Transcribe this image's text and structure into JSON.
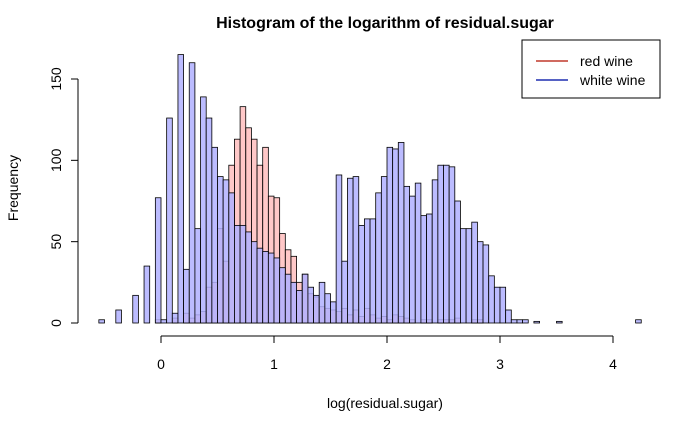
{
  "chart_data": {
    "type": "histogram",
    "title": "Histogram of the logarithm of residual.sugar",
    "xlabel": "log(residual.sugar)",
    "ylabel": "Frequency",
    "xlim": [
      -0.55,
      4.25
    ],
    "ylim": [
      0,
      170
    ],
    "x_ticks": [
      0,
      1,
      2,
      3,
      4
    ],
    "y_ticks": [
      0,
      50,
      100,
      150
    ],
    "bin_width": 0.05,
    "legend": {
      "position": "top-right"
    },
    "series": [
      {
        "name": "red wine",
        "line_color": "#c0392b",
        "fill_color": "#ff9a9a",
        "fill_opacity": 0.55,
        "bins": [
          {
            "x": -0.05,
            "y": 2
          },
          {
            "x": 0.1,
            "y": 3
          },
          {
            "x": 0.2,
            "y": 6
          },
          {
            "x": 0.25,
            "y": 3
          },
          {
            "x": 0.3,
            "y": 5
          },
          {
            "x": 0.35,
            "y": 7
          },
          {
            "x": 0.4,
            "y": 22
          },
          {
            "x": 0.45,
            "y": 25
          },
          {
            "x": 0.5,
            "y": 58
          },
          {
            "x": 0.55,
            "y": 38
          },
          {
            "x": 0.6,
            "y": 97
          },
          {
            "x": 0.65,
            "y": 113
          },
          {
            "x": 0.7,
            "y": 133
          },
          {
            "x": 0.75,
            "y": 120
          },
          {
            "x": 0.8,
            "y": 113
          },
          {
            "x": 0.85,
            "y": 97
          },
          {
            "x": 0.9,
            "y": 108
          },
          {
            "x": 0.95,
            "y": 78
          },
          {
            "x": 1.0,
            "y": 77
          },
          {
            "x": 1.05,
            "y": 55
          },
          {
            "x": 1.1,
            "y": 45
          },
          {
            "x": 1.15,
            "y": 41
          },
          {
            "x": 1.2,
            "y": 25
          },
          {
            "x": 1.25,
            "y": 30
          },
          {
            "x": 1.3,
            "y": 18
          },
          {
            "x": 1.35,
            "y": 16
          },
          {
            "x": 1.4,
            "y": 10
          },
          {
            "x": 1.45,
            "y": 9
          },
          {
            "x": 1.5,
            "y": 8
          },
          {
            "x": 1.55,
            "y": 7
          },
          {
            "x": 1.6,
            "y": 9
          },
          {
            "x": 1.65,
            "y": 5
          },
          {
            "x": 1.7,
            "y": 8
          },
          {
            "x": 1.75,
            "y": 4
          },
          {
            "x": 1.8,
            "y": 9
          },
          {
            "x": 1.85,
            "y": 5
          },
          {
            "x": 1.9,
            "y": 3
          },
          {
            "x": 1.95,
            "y": 4
          },
          {
            "x": 2.0,
            "y": 2
          },
          {
            "x": 2.05,
            "y": 5
          },
          {
            "x": 2.1,
            "y": 4
          },
          {
            "x": 2.15,
            "y": 3
          },
          {
            "x": 2.2,
            "y": 2
          },
          {
            "x": 2.3,
            "y": 2
          },
          {
            "x": 2.35,
            "y": 2
          },
          {
            "x": 2.45,
            "y": 2
          },
          {
            "x": 2.5,
            "y": 2
          },
          {
            "x": 2.55,
            "y": 2
          },
          {
            "x": 2.6,
            "y": 3
          },
          {
            "x": 2.75,
            "y": 2
          },
          {
            "x": 2.8,
            "y": 2
          }
        ]
      },
      {
        "name": "white wine",
        "line_color": "#1f2fb0",
        "fill_color": "#b0b0ff",
        "fill_opacity": 0.85,
        "bins": [
          {
            "x": -0.55,
            "y": 2
          },
          {
            "x": -0.4,
            "y": 8
          },
          {
            "x": -0.25,
            "y": 17
          },
          {
            "x": -0.15,
            "y": 35
          },
          {
            "x": -0.05,
            "y": 77
          },
          {
            "x": 0.0,
            "y": 2
          },
          {
            "x": 0.05,
            "y": 126
          },
          {
            "x": 0.1,
            "y": 6
          },
          {
            "x": 0.15,
            "y": 165
          },
          {
            "x": 0.2,
            "y": 33
          },
          {
            "x": 0.25,
            "y": 160
          },
          {
            "x": 0.3,
            "y": 58
          },
          {
            "x": 0.35,
            "y": 139
          },
          {
            "x": 0.4,
            "y": 126
          },
          {
            "x": 0.45,
            "y": 108
          },
          {
            "x": 0.5,
            "y": 90
          },
          {
            "x": 0.55,
            "y": 88
          },
          {
            "x": 0.6,
            "y": 80
          },
          {
            "x": 0.65,
            "y": 60
          },
          {
            "x": 0.7,
            "y": 60
          },
          {
            "x": 0.75,
            "y": 56
          },
          {
            "x": 0.8,
            "y": 50
          },
          {
            "x": 0.85,
            "y": 46
          },
          {
            "x": 0.9,
            "y": 44
          },
          {
            "x": 0.95,
            "y": 43
          },
          {
            "x": 1.0,
            "y": 40
          },
          {
            "x": 1.05,
            "y": 34
          },
          {
            "x": 1.1,
            "y": 30
          },
          {
            "x": 1.15,
            "y": 25
          },
          {
            "x": 1.2,
            "y": 20
          },
          {
            "x": 1.25,
            "y": 30
          },
          {
            "x": 1.3,
            "y": 22
          },
          {
            "x": 1.35,
            "y": 17
          },
          {
            "x": 1.4,
            "y": 25
          },
          {
            "x": 1.45,
            "y": 18
          },
          {
            "x": 1.5,
            "y": 13
          },
          {
            "x": 1.55,
            "y": 91
          },
          {
            "x": 1.6,
            "y": 38
          },
          {
            "x": 1.65,
            "y": 89
          },
          {
            "x": 1.7,
            "y": 90
          },
          {
            "x": 1.75,
            "y": 60
          },
          {
            "x": 1.8,
            "y": 64
          },
          {
            "x": 1.85,
            "y": 64
          },
          {
            "x": 1.9,
            "y": 80
          },
          {
            "x": 1.95,
            "y": 90
          },
          {
            "x": 2.0,
            "y": 108
          },
          {
            "x": 2.05,
            "y": 107
          },
          {
            "x": 2.1,
            "y": 111
          },
          {
            "x": 2.15,
            "y": 84
          },
          {
            "x": 2.2,
            "y": 78
          },
          {
            "x": 2.25,
            "y": 86
          },
          {
            "x": 2.3,
            "y": 66
          },
          {
            "x": 2.35,
            "y": 67
          },
          {
            "x": 2.4,
            "y": 88
          },
          {
            "x": 2.45,
            "y": 97
          },
          {
            "x": 2.5,
            "y": 97
          },
          {
            "x": 2.55,
            "y": 96
          },
          {
            "x": 2.6,
            "y": 75
          },
          {
            "x": 2.65,
            "y": 58
          },
          {
            "x": 2.7,
            "y": 58
          },
          {
            "x": 2.75,
            "y": 62
          },
          {
            "x": 2.8,
            "y": 50
          },
          {
            "x": 2.85,
            "y": 48
          },
          {
            "x": 2.9,
            "y": 29
          },
          {
            "x": 2.95,
            "y": 22
          },
          {
            "x": 3.0,
            "y": 22
          },
          {
            "x": 3.05,
            "y": 8
          },
          {
            "x": 3.1,
            "y": 2
          },
          {
            "x": 3.15,
            "y": 2
          },
          {
            "x": 3.2,
            "y": 2
          },
          {
            "x": 3.3,
            "y": 1
          },
          {
            "x": 3.5,
            "y": 1
          },
          {
            "x": 4.2,
            "y": 2
          }
        ]
      }
    ]
  }
}
